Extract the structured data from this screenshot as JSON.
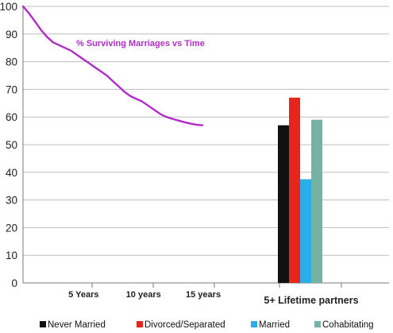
{
  "chart_data": [
    {
      "type": "line",
      "annotation": "% Surviving Marriages vs Time",
      "ylim": [
        0,
        100
      ],
      "yticks": [
        0,
        10,
        20,
        30,
        40,
        50,
        60,
        70,
        80,
        90,
        100
      ],
      "xticks": [
        {
          "x": 5,
          "label": "5 Years"
        },
        {
          "x": 10,
          "label": "10 years"
        },
        {
          "x": 15,
          "label": "15 years"
        }
      ],
      "color": "#b02cc8",
      "series": [
        {
          "x": [
            0,
            0.5,
            1,
            1.5,
            2,
            2.5,
            3,
            3.5,
            4,
            4.5,
            5,
            5.5,
            6,
            6.5,
            7,
            7.5,
            8,
            8.5,
            9,
            9.5,
            10,
            10.5,
            11,
            11.5,
            12,
            12.5,
            13,
            13.5,
            14,
            14.5,
            15
          ],
          "y": [
            100,
            97.5,
            94.5,
            91.5,
            89,
            87,
            86,
            85,
            84,
            82.5,
            81,
            79.5,
            78,
            76.5,
            75,
            73,
            71,
            69,
            67.5,
            66.5,
            65.5,
            64,
            62.5,
            61,
            60,
            59.3,
            58.7,
            58.1,
            57.6,
            57.2,
            57
          ]
        }
      ]
    },
    {
      "type": "bar",
      "categories": [
        "5+ Lifetime partners"
      ],
      "ylim": [
        0,
        100
      ],
      "series": [
        {
          "name": "Never Married",
          "color": "#111111",
          "values": [
            57
          ]
        },
        {
          "name": "Divorced/Separated",
          "color": "#e8251d",
          "values": [
            67
          ]
        },
        {
          "name": "Married",
          "color": "#29aee9",
          "values": [
            37.5
          ]
        },
        {
          "name": "Cohabitating",
          "color": "#72b3a3",
          "values": [
            59
          ]
        }
      ],
      "legend": "bottom"
    }
  ]
}
